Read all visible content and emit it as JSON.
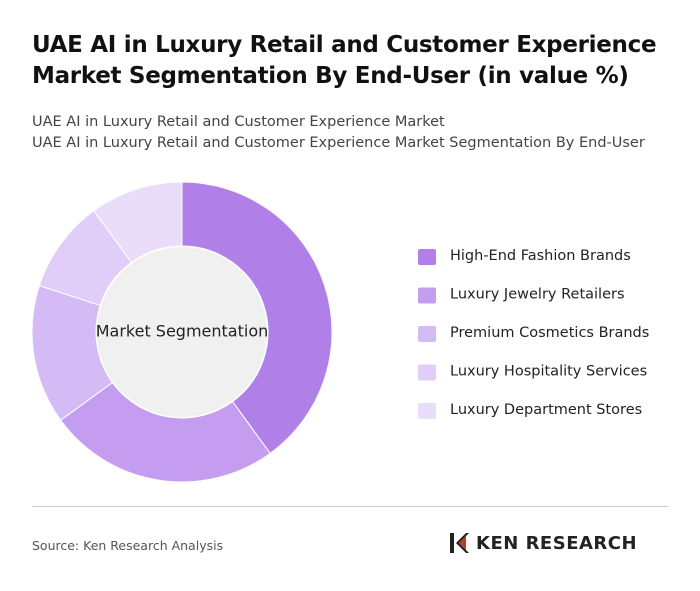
{
  "chart_data": {
    "type": "donut",
    "title": "UAE AI in Luxury Retail and Customer Experience Market Segmentation By End-User (in value %)",
    "subtitle": [
      "UAE AI in Luxury Retail and Customer Experience Market",
      "UAE AI in Luxury Retail and Customer Experience Market Segmentation By End-User"
    ],
    "center_label": "Market Segmentation",
    "categories": [
      "High-End Fashion Brands",
      "Luxury Jewelry Retailers",
      "Premium Cosmetics Brands",
      "Luxury Hospitality Services",
      "Luxury Department Stores"
    ],
    "values": [
      40,
      25,
      15,
      10,
      10
    ],
    "colors": [
      "#b07fe8",
      "#c49df0",
      "#d5bbf5",
      "#e0cdf8",
      "#e9ddfa"
    ],
    "legend": "right"
  },
  "source": "Source: Ken Research Analysis",
  "logo": "KEN RESEARCH"
}
